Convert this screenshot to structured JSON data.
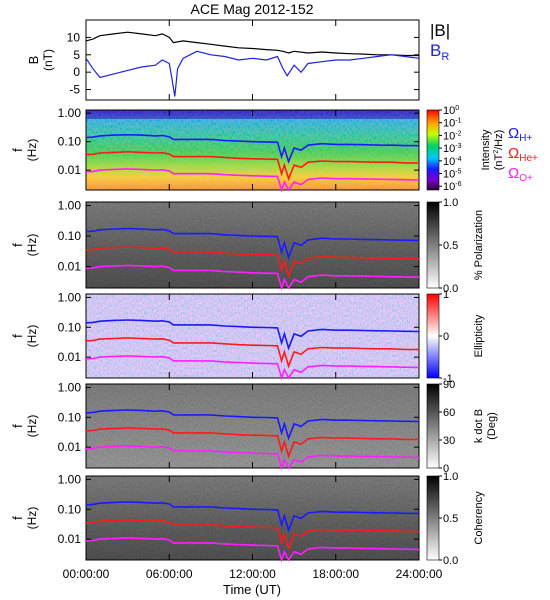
{
  "title": "ACE Mag 2012-152",
  "time_axis": {
    "label": "Time (UT)",
    "ticks": [
      "00:00:00",
      "06:00:00",
      "12:00:00",
      "18:00:00",
      "24:00:00"
    ],
    "range_hours": [
      0,
      24
    ]
  },
  "chart_data": [
    {
      "type": "line",
      "panel": "magnetic-field",
      "ylabel": "B",
      "yunit": "(nT)",
      "ylim": [
        -8,
        15
      ],
      "yticks": [
        "10",
        "5",
        "0",
        "-5"
      ],
      "series": [
        {
          "name": "|B|",
          "color": "#000000",
          "x": [
            0,
            0.5,
            1,
            2,
            3,
            4,
            5,
            5.5,
            6,
            6.3,
            7,
            8,
            9,
            10,
            11,
            12,
            13,
            13.8,
            14.2,
            14.6,
            15,
            16,
            17,
            18,
            19,
            20,
            21,
            22,
            23,
            24
          ],
          "y": [
            9,
            9.5,
            10.5,
            11,
            11.5,
            11,
            10.5,
            11,
            10,
            8.5,
            9,
            8.5,
            8,
            7.5,
            7,
            6.8,
            6.5,
            6.3,
            6,
            5.5,
            6,
            5.5,
            5.8,
            5.5,
            5.3,
            5.2,
            5,
            5,
            4.8,
            4.8
          ]
        },
        {
          "name": "B",
          "subscript": "R",
          "color": "#2020e0",
          "x": [
            0,
            0.5,
            1,
            2,
            3,
            4,
            5,
            5.5,
            6,
            6.2,
            6.4,
            6.6,
            7,
            8,
            9,
            10,
            11,
            12,
            13,
            13.8,
            14.2,
            14.5,
            15,
            15.5,
            16,
            17,
            18,
            19,
            20,
            21,
            22,
            23,
            24
          ],
          "y": [
            4,
            1,
            -1.5,
            -0.5,
            0.5,
            1.5,
            2,
            3.5,
            2.5,
            -2,
            -7,
            1,
            4,
            6,
            5,
            4.5,
            3.5,
            4,
            3.5,
            4.5,
            1,
            -1,
            2,
            0,
            2.5,
            3,
            3.5,
            3.5,
            4,
            4.5,
            5,
            4.5,
            4
          ]
        }
      ]
    },
    {
      "type": "heatmap",
      "panel": "intensity",
      "ylabel": "f",
      "yunit": "(Hz)",
      "yscale": "log",
      "ylim": [
        0.002,
        1.3
      ],
      "yticks": [
        "1.00",
        "0.10",
        "0.01"
      ],
      "colorbar": {
        "label": "Intensity",
        "unit_base": "(nT",
        "unit_exp": "2",
        "unit_tail": "/Hz)",
        "ticks": [
          {
            "base": "10",
            "exp": "0"
          },
          {
            "base": "10",
            "exp": "-1"
          },
          {
            "base": "10",
            "exp": "-2"
          },
          {
            "base": "10",
            "exp": "-3"
          },
          {
            "base": "10",
            "exp": "-4"
          },
          {
            "base": "10",
            "exp": "-5"
          },
          {
            "base": "10",
            "exp": "-6"
          }
        ],
        "range_log": [
          -6.3,
          0
        ],
        "colormap": "rainbow"
      }
    },
    {
      "type": "heatmap",
      "panel": "polarization",
      "ylabel": "f",
      "yunit": "(Hz)",
      "yscale": "log",
      "colorbar": {
        "label": "% Polarization",
        "ticks": [
          "1.0",
          "0.5",
          "0.0"
        ],
        "range": [
          0,
          1
        ],
        "colormap": "grayscale"
      }
    },
    {
      "type": "heatmap",
      "panel": "ellipticity",
      "ylabel": "f",
      "yunit": "(Hz)",
      "yscale": "log",
      "colorbar": {
        "label": "Ellipticity",
        "ticks": [
          "1",
          "0",
          "-1"
        ],
        "range": [
          -1,
          1
        ],
        "colormap": "blue-white-red"
      }
    },
    {
      "type": "heatmap",
      "panel": "k-dot-b",
      "ylabel": "f",
      "yunit": "(Hz)",
      "yscale": "log",
      "colorbar": {
        "label": "k dot B",
        "unit": "(Deg)",
        "ticks": [
          "90",
          "60",
          "30",
          "0"
        ],
        "range": [
          0,
          90
        ],
        "colormap": "grayscale"
      }
    },
    {
      "type": "heatmap",
      "panel": "coherency",
      "ylabel": "f",
      "yunit": "(Hz)",
      "yscale": "log",
      "colorbar": {
        "label": "Coherency",
        "ticks": [
          "1.0",
          "0.5",
          "0.0"
        ],
        "range": [
          0,
          1
        ],
        "colormap": "grayscale"
      }
    }
  ],
  "gyrofrequency_lines": [
    {
      "symbol": "Ω",
      "subscript": "H+",
      "color": "#1a1aff",
      "x": [
        0,
        0.5,
        1,
        2,
        3,
        4,
        5,
        5.5,
        6,
        6.3,
        7,
        8,
        9,
        10,
        11,
        12,
        13,
        13.8,
        14.1,
        14.3,
        14.6,
        15,
        15.5,
        16,
        17,
        18,
        19,
        20,
        21,
        22,
        23,
        24
      ],
      "y": [
        0.14,
        0.145,
        0.16,
        0.17,
        0.175,
        0.17,
        0.16,
        0.165,
        0.15,
        0.12,
        0.12,
        0.12,
        0.12,
        0.11,
        0.105,
        0.1,
        0.098,
        0.095,
        0.03,
        0.06,
        0.02,
        0.06,
        0.05,
        0.075,
        0.085,
        0.08,
        0.08,
        0.078,
        0.076,
        0.075,
        0.073,
        0.072
      ]
    },
    {
      "symbol": "Ω",
      "subscript": "He+",
      "color": "#ff1a1a",
      "x": [
        0,
        0.5,
        1,
        2,
        3,
        4,
        5,
        5.5,
        6,
        6.3,
        7,
        8,
        9,
        10,
        11,
        12,
        13,
        13.8,
        14.1,
        14.3,
        14.6,
        15,
        15.5,
        16,
        17,
        18,
        19,
        20,
        21,
        22,
        23,
        24
      ],
      "y": [
        0.035,
        0.036,
        0.04,
        0.042,
        0.044,
        0.042,
        0.04,
        0.041,
        0.037,
        0.03,
        0.03,
        0.03,
        0.03,
        0.028,
        0.026,
        0.025,
        0.0245,
        0.024,
        0.0075,
        0.015,
        0.005,
        0.015,
        0.0125,
        0.019,
        0.021,
        0.02,
        0.02,
        0.0195,
        0.019,
        0.019,
        0.018,
        0.018
      ]
    },
    {
      "symbol": "Ω",
      "subscript": "O+",
      "color": "#ff20ff",
      "x": [
        0,
        0.5,
        1,
        2,
        3,
        4,
        5,
        5.5,
        6,
        6.3,
        7,
        8,
        9,
        10,
        11,
        12,
        13,
        13.8,
        14.1,
        14.3,
        14.6,
        15,
        15.5,
        16,
        17,
        18,
        19,
        20,
        21,
        22,
        23,
        24
      ],
      "y": [
        0.0087,
        0.009,
        0.01,
        0.0106,
        0.011,
        0.0106,
        0.01,
        0.0103,
        0.0094,
        0.0075,
        0.0075,
        0.0075,
        0.0075,
        0.0069,
        0.0066,
        0.0063,
        0.0061,
        0.006,
        0.0019,
        0.0038,
        0.0013,
        0.0038,
        0.0031,
        0.0047,
        0.0053,
        0.005,
        0.005,
        0.0049,
        0.0048,
        0.0047,
        0.0046,
        0.0045
      ]
    }
  ],
  "colors": {
    "frame": "#000000",
    "background": "#ffffff"
  }
}
